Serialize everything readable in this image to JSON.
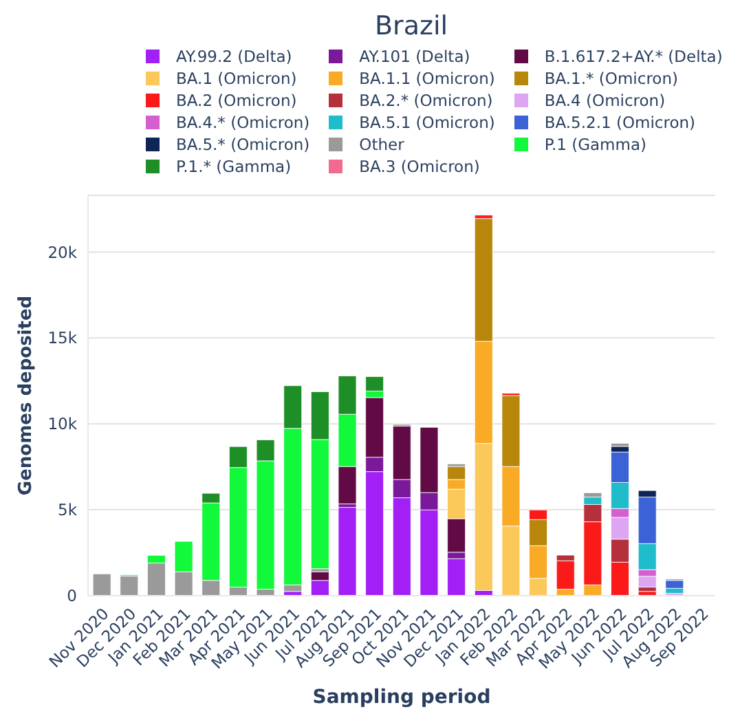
{
  "chart_data": {
    "type": "bar",
    "stacked": true,
    "title": "Brazil",
    "xlabel": "Sampling period",
    "ylabel": "Genomes deposited",
    "categories": [
      "Nov 2020",
      "Dec 2020",
      "Jan 2021",
      "Feb 2021",
      "Mar 2021",
      "Apr 2021",
      "May 2021",
      "Jun 2021",
      "Jul 2021",
      "Aug 2021",
      "Sep 2021",
      "Oct 2021",
      "Nov 2021",
      "Dec 2021",
      "Jan 2022",
      "Feb 2022",
      "Mar 2022",
      "Apr 2022",
      "May 2022",
      "Jun 2022",
      "Jul 2022",
      "Aug 2022",
      "Sep 2022"
    ],
    "ylim": [
      0,
      23300
    ],
    "yticks": [
      0,
      {
        "value": 5000,
        "label": "5k"
      },
      {
        "value": 10000,
        "label": "10k"
      },
      {
        "value": 15000,
        "label": "15k"
      },
      {
        "value": 20000,
        "label": "20k"
      }
    ],
    "grid": "y",
    "legend": "top",
    "series": [
      {
        "name": "AY.99.2 (Delta)",
        "color": "#a21ff5",
        "values": [
          null,
          null,
          null,
          null,
          null,
          null,
          null,
          250,
          890,
          5140,
          7220,
          5700,
          4990,
          2150,
          300,
          null,
          null,
          null,
          null,
          null,
          null,
          null,
          null
        ]
      },
      {
        "name": "AY.101 (Delta)",
        "color": "#7a1a9a",
        "values": [
          null,
          null,
          null,
          null,
          null,
          null,
          null,
          null,
          null,
          200,
          840,
          1060,
          1010,
          380,
          null,
          null,
          null,
          null,
          null,
          null,
          null,
          null,
          null
        ]
      },
      {
        "name": "B.1.617.2+AY.* (Delta)",
        "color": "#620a45",
        "values": [
          null,
          null,
          null,
          null,
          null,
          null,
          null,
          null,
          500,
          2180,
          3470,
          3110,
          3800,
          1950,
          null,
          null,
          null,
          null,
          null,
          null,
          null,
          null,
          null
        ]
      },
      {
        "name": "BA.1 (Omicron)",
        "color": "#fbc85a",
        "values": [
          null,
          null,
          null,
          null,
          null,
          null,
          null,
          null,
          null,
          null,
          null,
          null,
          null,
          1720,
          8560,
          4050,
          1010,
          null,
          null,
          null,
          null,
          null,
          null
        ]
      },
      {
        "name": "BA.1.1 (Omicron)",
        "color": "#f9ab25",
        "values": [
          null,
          null,
          null,
          null,
          null,
          null,
          null,
          null,
          null,
          null,
          null,
          null,
          null,
          560,
          5950,
          3470,
          1900,
          380,
          630,
          null,
          null,
          null,
          null
        ]
      },
      {
        "name": "BA.1.* (Omicron)",
        "color": "#b8860b",
        "values": [
          null,
          null,
          null,
          null,
          null,
          null,
          null,
          null,
          null,
          null,
          null,
          null,
          null,
          760,
          7140,
          4130,
          1520,
          null,
          null,
          null,
          null,
          null,
          null
        ]
      },
      {
        "name": "BA.2 (Omicron)",
        "color": "#fa1a1a",
        "values": [
          null,
          null,
          null,
          null,
          null,
          null,
          null,
          null,
          null,
          null,
          null,
          null,
          null,
          null,
          200,
          130,
          560,
          1650,
          3670,
          1950,
          250,
          null,
          null
        ]
      },
      {
        "name": "BA.2.* (Omicron)",
        "color": "#b5303a",
        "values": [
          null,
          null,
          null,
          null,
          null,
          null,
          null,
          null,
          null,
          null,
          null,
          null,
          null,
          null,
          null,
          null,
          null,
          330,
          1010,
          1340,
          250,
          null,
          null
        ]
      },
      {
        "name": "BA.4 (Omicron)",
        "color": "#dea5f2",
        "values": [
          null,
          null,
          null,
          null,
          null,
          null,
          null,
          null,
          null,
          null,
          null,
          null,
          null,
          null,
          null,
          null,
          null,
          null,
          null,
          1270,
          630,
          130,
          null
        ]
      },
      {
        "name": "BA.4.* (Omicron)",
        "color": "#d65fd0",
        "values": [
          null,
          null,
          null,
          null,
          null,
          null,
          null,
          null,
          null,
          null,
          null,
          null,
          null,
          null,
          null,
          null,
          null,
          null,
          null,
          510,
          380,
          null,
          null
        ]
      },
      {
        "name": "BA.5.1 (Omicron)",
        "color": "#1fbccb",
        "values": [
          null,
          null,
          null,
          null,
          null,
          null,
          null,
          null,
          null,
          null,
          null,
          null,
          null,
          null,
          null,
          null,
          null,
          null,
          430,
          1520,
          1520,
          300,
          null
        ]
      },
      {
        "name": "BA.5.2.1 (Omicron)",
        "color": "#3b62d6",
        "values": [
          null,
          null,
          null,
          null,
          null,
          null,
          null,
          null,
          null,
          null,
          null,
          null,
          null,
          null,
          null,
          null,
          null,
          null,
          null,
          1770,
          2710,
          460,
          null
        ]
      },
      {
        "name": "BA.5.* (Omicron)",
        "color": "#0f2558",
        "values": [
          null,
          null,
          null,
          null,
          null,
          null,
          null,
          null,
          null,
          null,
          null,
          null,
          null,
          null,
          null,
          null,
          null,
          null,
          null,
          330,
          380,
          null,
          null
        ]
      },
      {
        "name": "Other",
        "color": "#9a9a9a",
        "values": [
          1270,
          1140,
          1900,
          1390,
          890,
          500,
          380,
          380,
          180,
          null,
          null,
          100,
          null,
          150,
          null,
          null,
          null,
          null,
          250,
          180,
          null,
          80,
          null
        ]
      },
      {
        "name": "P.1 (Gamma)",
        "color": "#12f93c",
        "values": [
          null,
          70,
          450,
          1770,
          4510,
          6960,
          7470,
          9110,
          7520,
          3040,
          380,
          null,
          null,
          null,
          null,
          null,
          null,
          null,
          null,
          null,
          null,
          null,
          null
        ]
      },
      {
        "name": "P.1.* (Gamma)",
        "color": "#1e8f26",
        "values": [
          null,
          null,
          null,
          null,
          560,
          1220,
          1220,
          2480,
          2780,
          2230,
          840,
          null,
          null,
          null,
          null,
          null,
          null,
          null,
          null,
          null,
          null,
          null,
          null
        ]
      },
      {
        "name": "BA.3 (Omicron)",
        "color": "#f26b8e",
        "values": [
          null,
          null,
          null,
          null,
          null,
          null,
          null,
          null,
          null,
          null,
          null,
          null,
          null,
          null,
          null,
          null,
          null,
          null,
          null,
          null,
          null,
          null,
          null
        ]
      }
    ]
  }
}
